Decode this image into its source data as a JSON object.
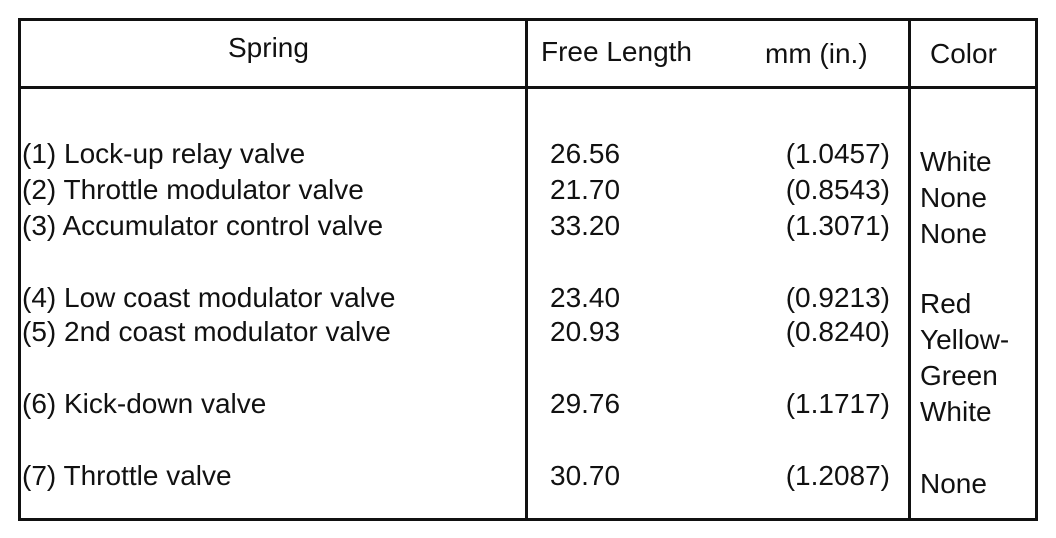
{
  "header": {
    "spring": "Spring",
    "free_length": "Free Length",
    "units": "mm (in.)",
    "color": "Color"
  },
  "table": {
    "rows": [
      [
        "(1) Lock-up relay valve",
        "26.56",
        "(1.0457)",
        "White"
      ],
      [
        "(2) Throttle modulator valve",
        "21.70",
        "(0.8543)",
        "None"
      ],
      [
        "(3) Accumulator control valve",
        "33.20",
        "(1.3071)",
        "None"
      ],
      [
        "(4) Low coast modulator valve",
        "23.40",
        "(0.9213)",
        "Red"
      ],
      [
        "(5) 2nd coast modulator valve",
        "20.93",
        "(0.8240)",
        "Yellow-Green"
      ],
      [
        "(6) Kick-down valve",
        "29.76",
        "(1.1717)",
        "White"
      ],
      [
        "(7) Throttle valve",
        "30.70",
        "(1.2087)",
        "None"
      ]
    ]
  }
}
